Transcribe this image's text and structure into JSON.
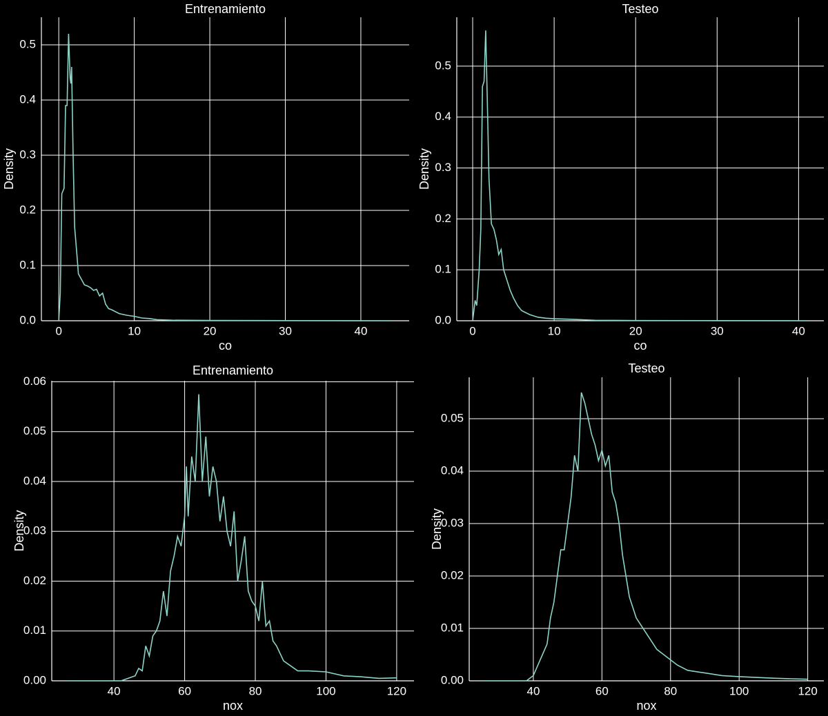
{
  "chart_data": [
    {
      "type": "line",
      "title": "Entrenamiento",
      "x_label": "co",
      "y_label": "Density",
      "grid": true,
      "xlim": [
        -2.3,
        46.4
      ],
      "ylim": [
        0,
        0.55
      ],
      "xticks": [
        0,
        10,
        20,
        30,
        40
      ],
      "yticks": [
        {
          "value": 0,
          "label": "0.0"
        },
        0.1,
        0.2,
        0.3,
        0.4,
        0.5
      ],
      "series": [
        {
          "name": "co",
          "color": "#8dd3c7",
          "x": [
            0,
            0.2,
            0.4,
            0.7,
            0.9,
            1.1,
            1.3,
            1.5,
            1.6,
            1.7,
            1.9,
            2.1,
            2.4,
            2.6,
            3,
            3.4,
            3.8,
            4.2,
            4.6,
            5,
            5.4,
            5.8,
            6.2,
            6.6,
            7,
            8,
            9,
            10,
            11,
            12,
            13,
            15,
            20,
            30,
            44
          ],
          "values": [
            0,
            0.05,
            0.23,
            0.24,
            0.39,
            0.39,
            0.52,
            0.44,
            0.43,
            0.46,
            0.3,
            0.17,
            0.12,
            0.085,
            0.075,
            0.065,
            0.063,
            0.06,
            0.055,
            0.057,
            0.045,
            0.05,
            0.03,
            0.022,
            0.02,
            0.013,
            0.01,
            0.008,
            0.005,
            0.004,
            0.002,
            0.001,
            0.0005,
            0.0003,
            0
          ]
        }
      ]
    },
    {
      "type": "line",
      "title": "Testeo",
      "x_label": "co",
      "y_label": "Density",
      "grid": true,
      "xlim": [
        -1.95,
        43.1
      ],
      "ylim": [
        0,
        0.596
      ],
      "xticks": [
        0,
        10,
        20,
        30,
        40
      ],
      "yticks": [
        {
          "value": 0,
          "label": "0.0"
        },
        0.1,
        0.2,
        0.3,
        0.4,
        0.5
      ],
      "series": [
        {
          "name": "co",
          "color": "#8dd3c7",
          "x": [
            0,
            0.3,
            0.5,
            0.8,
            1.0,
            1.2,
            1.4,
            1.6,
            1.8,
            2.0,
            2.3,
            2.6,
            2.9,
            3.2,
            3.5,
            3.8,
            4.2,
            4.6,
            5,
            5.5,
            6,
            7,
            8,
            9,
            10,
            12,
            15,
            20,
            30,
            41
          ],
          "values": [
            0,
            0.04,
            0.03,
            0.1,
            0.18,
            0.46,
            0.47,
            0.57,
            0.43,
            0.28,
            0.19,
            0.18,
            0.16,
            0.13,
            0.14,
            0.1,
            0.08,
            0.06,
            0.045,
            0.03,
            0.02,
            0.012,
            0.007,
            0.005,
            0.004,
            0.003,
            0.001,
            0.0005,
            0.0003,
            0
          ]
        }
      ]
    },
    {
      "type": "line",
      "title": "Entrenamiento",
      "x_label": "nox",
      "y_label": "Density",
      "grid": true,
      "xlim": [
        22.4,
        124.9
      ],
      "ylim": [
        0,
        0.0602
      ],
      "xticks": [
        40,
        60,
        80,
        100,
        120
      ],
      "yticks": [
        {
          "value": 0,
          "label": "0.00"
        },
        0.01,
        0.02,
        0.03,
        0.04,
        0.05,
        0.06
      ],
      "series": [
        {
          "name": "nox",
          "color": "#8dd3c7",
          "x": [
            27,
            42,
            44,
            46,
            47,
            48,
            49,
            50,
            51,
            52,
            53,
            54,
            55,
            56,
            57,
            58,
            59,
            60,
            60.5,
            61,
            62,
            63,
            64,
            65,
            66,
            67,
            68,
            69,
            70,
            71,
            72,
            73,
            74,
            75,
            76,
            77,
            78,
            79,
            80,
            81,
            82,
            83,
            84,
            85,
            86,
            88,
            90,
            92,
            95,
            100,
            105,
            110,
            115,
            120
          ],
          "values": [
            0,
            0,
            0.0005,
            0.001,
            0.0025,
            0.002,
            0.007,
            0.005,
            0.009,
            0.01,
            0.012,
            0.018,
            0.013,
            0.022,
            0.025,
            0.029,
            0.027,
            0.033,
            0.043,
            0.033,
            0.045,
            0.04,
            0.0575,
            0.04,
            0.049,
            0.037,
            0.043,
            0.04,
            0.032,
            0.037,
            0.03,
            0.027,
            0.034,
            0.02,
            0.024,
            0.029,
            0.018,
            0.016,
            0.015,
            0.012,
            0.02,
            0.011,
            0.012,
            0.008,
            0.007,
            0.004,
            0.003,
            0.002,
            0.002,
            0.0018,
            0.001,
            0.0008,
            0.0005,
            0.0006
          ]
        }
      ]
    },
    {
      "type": "line",
      "title": "Testeo",
      "x_label": "nox",
      "y_label": "Density",
      "grid": true,
      "xlim": [
        21.3,
        124.7
      ],
      "ylim": [
        0,
        0.0579
      ],
      "xticks": [
        40,
        60,
        80,
        100,
        120
      ],
      "yticks": [
        {
          "value": 0,
          "label": "0.00"
        },
        0.01,
        0.02,
        0.03,
        0.04,
        0.05
      ],
      "series": [
        {
          "name": "nox",
          "color": "#8dd3c7",
          "x": [
            25,
            38,
            40,
            42,
            44,
            45,
            46,
            47,
            48,
            49,
            50,
            51,
            52,
            53,
            54,
            55,
            56,
            57,
            58,
            59,
            60,
            61,
            62,
            63,
            64,
            65,
            66,
            67,
            68,
            69,
            70,
            72,
            74,
            76,
            78,
            80,
            82,
            85,
            90,
            95,
            100,
            110,
            120
          ],
          "values": [
            0,
            0,
            0.001,
            0.004,
            0.007,
            0.012,
            0.015,
            0.02,
            0.025,
            0.025,
            0.03,
            0.035,
            0.043,
            0.04,
            0.055,
            0.053,
            0.05,
            0.047,
            0.045,
            0.042,
            0.044,
            0.041,
            0.043,
            0.036,
            0.034,
            0.03,
            0.024,
            0.02,
            0.016,
            0.014,
            0.012,
            0.01,
            0.008,
            0.006,
            0.005,
            0.004,
            0.003,
            0.002,
            0.0015,
            0.001,
            0.0008,
            0.0005,
            0.0003
          ]
        }
      ]
    }
  ]
}
